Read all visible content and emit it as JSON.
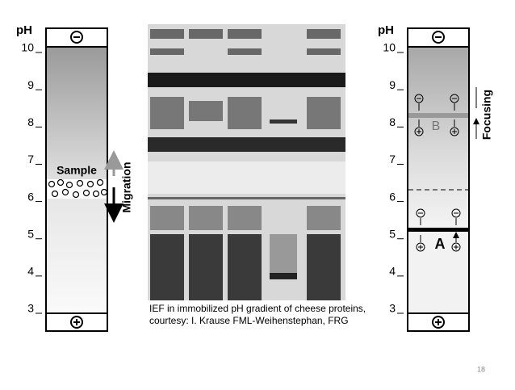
{
  "left_column": {
    "axis_label": "pH",
    "ticks": [
      10,
      9,
      8,
      7,
      6,
      5,
      4,
      3
    ],
    "sample_label": "Sample",
    "migration_label": "Migration"
  },
  "gel": {
    "caption_lines": [
      "IEF in immobilized pH gradient of cheese proteins,",
      "courtesy: I. Krause FML-Weihenstephan, FRG"
    ]
  },
  "right_column": {
    "axis_label": "pH",
    "ticks": [
      10,
      9,
      8,
      7,
      6,
      5,
      4,
      3
    ],
    "focusing_label": "Focusing",
    "band_labels": [
      "B",
      "A"
    ]
  },
  "page_number": "18"
}
